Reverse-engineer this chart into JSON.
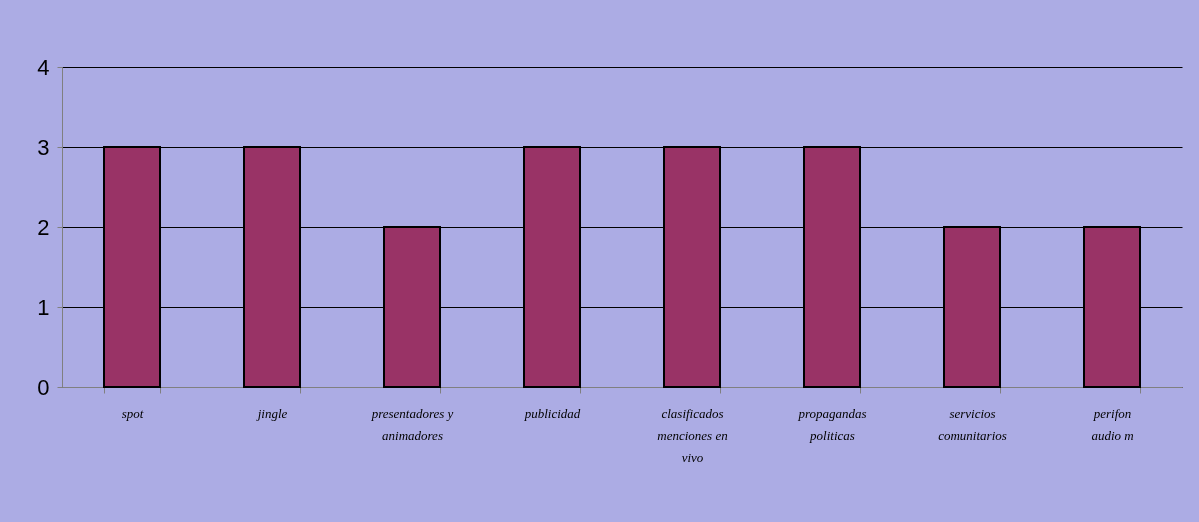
{
  "chart_data": {
    "type": "bar",
    "categories": [
      "spot",
      "jingle",
      "presentadores y\nanimadores",
      "publicidad",
      "clasificados\nmenciones en\nvivo",
      "propagandas\npoliticas",
      "servicios\ncomunitarios",
      "perifon\naudio m"
    ],
    "values": [
      3,
      3,
      2,
      3,
      3,
      3,
      2,
      2
    ],
    "color": "#993366",
    "ylim": [
      0,
      4
    ],
    "yticks": [
      0,
      1,
      2,
      3,
      4
    ],
    "grid": "y"
  }
}
